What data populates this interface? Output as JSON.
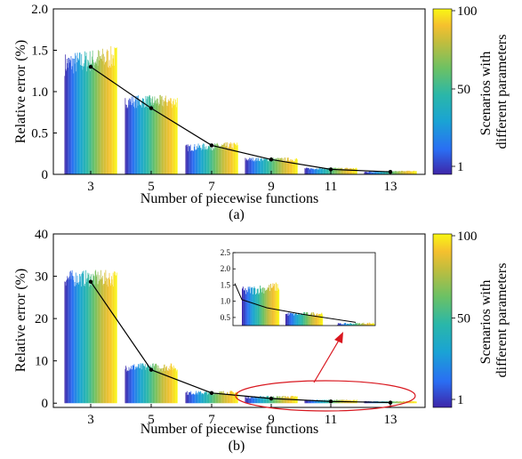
{
  "palette": [
    "#3e26a8",
    "#2a6ef3",
    "#1aa3d4",
    "#2ab7a9",
    "#6cc164",
    "#c2bd3d",
    "#f5c02e",
    "#f9f714"
  ],
  "annotation_color": "#d9171f",
  "chart_data": [
    {
      "type": "bar",
      "panel_label": "(a)",
      "xlabel": "Number of piecewise functions",
      "ylabel": "Relative error (%)",
      "categories": [
        "3",
        "5",
        "7",
        "9",
        "11",
        "13"
      ],
      "ylim": [
        0,
        2.0
      ],
      "yticks": [
        0,
        0.5,
        1.0,
        1.5,
        2.0
      ],
      "ytick_labels": [
        "0",
        "0.5",
        "1.0",
        "1.5",
        "2.0"
      ],
      "scenarios_per_group": 100,
      "group_start_values": [
        1.33,
        0.88,
        0.32,
        0.18,
        0.07,
        0.03
      ],
      "group_end_values": [
        1.42,
        0.88,
        0.35,
        0.18,
        0.07,
        0.04
      ],
      "group_noise": [
        0.14,
        0.08,
        0.045,
        0.025,
        0.012,
        0.007
      ],
      "mean_line": [
        1.3,
        0.8,
        0.35,
        0.18,
        0.06,
        0.03
      ],
      "colorbar": {
        "label_line1": "Scenarios with",
        "label_line2": "different parameters",
        "ticks": [
          "1",
          "50",
          "100"
        ]
      }
    },
    {
      "type": "bar",
      "panel_label": "(b)",
      "xlabel": "Number of piecewise functions",
      "ylabel": "Relative error (%)",
      "categories": [
        "3",
        "5",
        "7",
        "9",
        "11",
        "13"
      ],
      "ylim": [
        -1,
        40
      ],
      "yticks": [
        0,
        10,
        20,
        30,
        40
      ],
      "ytick_labels": [
        "0",
        "10",
        "20",
        "30",
        "40"
      ],
      "scenarios_per_group": 100,
      "group_start_values": [
        29.5,
        8.5,
        2.4,
        1.4,
        0.7,
        0.4
      ],
      "group_end_values": [
        29.5,
        8.5,
        2.5,
        1.5,
        0.7,
        0.4
      ],
      "group_noise": [
        2.0,
        1.0,
        0.5,
        0.3,
        0.15,
        0.1
      ],
      "mean_line": [
        28.7,
        7.9,
        2.4,
        1.1,
        0.4,
        0.15
      ],
      "colorbar": {
        "label_line1": "Scenarios with",
        "label_line2": "different parameters",
        "ticks": [
          "1",
          "50",
          "100"
        ]
      },
      "inset": {
        "ylim": [
          0.25,
          2.5
        ],
        "yticks": [
          0.5,
          1.0,
          1.5,
          2.0,
          2.5
        ],
        "ytick_labels": [
          "0.5",
          "1.0",
          "1.5",
          "2.0",
          "2.5"
        ],
        "group_start_values": [
          1.3,
          0.6,
          0.3
        ],
        "group_end_values": [
          1.45,
          0.62,
          0.32
        ],
        "group_noise": [
          0.15,
          0.06,
          0.03
        ],
        "mean_line": [
          1.55,
          1.05,
          0.8,
          0.6,
          0.35
        ]
      }
    }
  ]
}
